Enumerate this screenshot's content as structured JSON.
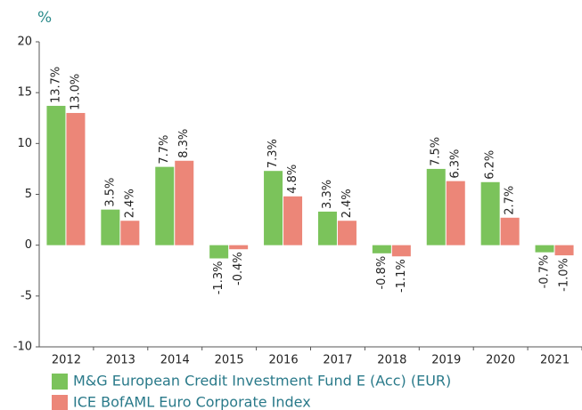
{
  "chart_data": {
    "type": "bar",
    "y_label": "%",
    "categories": [
      "2012",
      "2013",
      "2014",
      "2015",
      "2016",
      "2017",
      "2018",
      "2019",
      "2020",
      "2021"
    ],
    "series": [
      {
        "name": "M&G European Credit Investment Fund E (Acc) (EUR)",
        "color": "#7bc35b",
        "values": [
          13.7,
          3.5,
          7.7,
          -1.3,
          7.3,
          3.3,
          -0.8,
          7.5,
          6.2,
          -0.7
        ],
        "value_labels": [
          "13.7%",
          "3.5%",
          "7.7%",
          "-1.3%",
          "7.3%",
          "3.3%",
          "-0.8%",
          "7.5%",
          "6.2%",
          "-0.7%"
        ]
      },
      {
        "name": "ICE BofAML Euro Corporate Index",
        "color": "#ec8678",
        "values": [
          13.0,
          2.4,
          8.3,
          -0.4,
          4.8,
          2.4,
          -1.1,
          6.3,
          2.7,
          -1.0
        ],
        "value_labels": [
          "13.0%",
          "2.4%",
          "8.3%",
          "-0.4%",
          "4.8%",
          "2.4%",
          "-1.1%",
          "6.3%",
          "2.7%",
          "-1.0%"
        ]
      }
    ],
    "ylim": [
      -10,
      20
    ],
    "yticks": [
      -10,
      -5,
      0,
      5,
      10,
      15,
      20
    ]
  }
}
